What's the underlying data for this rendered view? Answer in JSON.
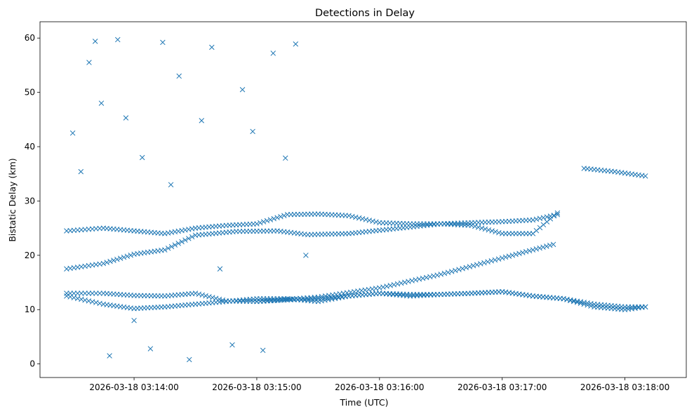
{
  "chart_data": {
    "type": "scatter",
    "title": "Detections in Delay",
    "xlabel": "Time (UTC)",
    "ylabel": "Bistatic Delay (km)",
    "marker": "x",
    "marker_color": "#1f77b4",
    "grid": false,
    "legend": "none",
    "xlim": [
      "2026-03-18 03:13:14",
      "2026-03-18 03:18:30"
    ],
    "ylim": [
      -2.5,
      63
    ],
    "x_ticks": [
      {
        "value": "2026-03-18 03:14:00",
        "label": "2026-03-18 03:14:00"
      },
      {
        "value": "2026-03-18 03:15:00",
        "label": "2026-03-18 03:15:00"
      },
      {
        "value": "2026-03-18 03:16:00",
        "label": "2026-03-18 03:16:00"
      },
      {
        "value": "2026-03-18 03:17:00",
        "label": "2026-03-18 03:17:00"
      },
      {
        "value": "2026-03-18 03:18:00",
        "label": "2026-03-18 03:18:00"
      }
    ],
    "y_ticks": [
      0,
      10,
      20,
      30,
      40,
      50,
      60
    ],
    "tracks": [
      {
        "x": [
          "2026-03-18 03:13:27",
          "2026-03-18 03:13:45",
          "2026-03-18 03:14:00",
          "2026-03-18 03:14:15",
          "2026-03-18 03:14:30",
          "2026-03-18 03:14:45",
          "2026-03-18 03:15:00",
          "2026-03-18 03:15:15",
          "2026-03-18 03:15:30",
          "2026-03-18 03:15:45",
          "2026-03-18 03:16:00",
          "2026-03-18 03:16:15",
          "2026-03-18 03:16:30",
          "2026-03-18 03:16:45",
          "2026-03-18 03:17:00",
          "2026-03-18 03:17:15",
          "2026-03-18 03:17:30",
          "2026-03-18 03:17:45",
          "2026-03-18 03:18:00",
          "2026-03-18 03:18:10"
        ],
        "y": [
          13,
          13,
          12.6,
          12.5,
          13,
          11.6,
          11.5,
          11.8,
          12,
          12.5,
          13,
          12.8,
          12.8,
          13,
          13.3,
          12.5,
          12,
          11,
          10.5,
          10.5
        ]
      },
      {
        "x": [
          "2026-03-18 03:13:27",
          "2026-03-18 03:13:45",
          "2026-03-18 03:14:00",
          "2026-03-18 03:14:15",
          "2026-03-18 03:14:30",
          "2026-03-18 03:14:45",
          "2026-03-18 03:15:00",
          "2026-03-18 03:15:15",
          "2026-03-18 03:15:30",
          "2026-03-18 03:15:45",
          "2026-03-18 03:16:00",
          "2026-03-18 03:16:15",
          "2026-03-18 03:16:30",
          "2026-03-18 03:16:45",
          "2026-03-18 03:17:00",
          "2026-03-18 03:17:15",
          "2026-03-18 03:17:30",
          "2026-03-18 03:17:45",
          "2026-03-18 03:18:00",
          "2026-03-18 03:18:10"
        ],
        "y": [
          12.5,
          11,
          10.2,
          10.5,
          11,
          11.5,
          12,
          12,
          11.5,
          12.5,
          13,
          12.5,
          12.8,
          13,
          13.3,
          12.5,
          12,
          10.5,
          10,
          10.5
        ]
      },
      {
        "x": [
          "2026-03-18 03:13:27",
          "2026-03-18 03:13:45",
          "2026-03-18 03:14:00",
          "2026-03-18 03:14:15",
          "2026-03-18 03:14:30",
          "2026-03-18 03:14:50",
          "2026-03-18 03:15:10",
          "2026-03-18 03:15:25",
          "2026-03-18 03:15:45",
          "2026-03-18 03:16:00",
          "2026-03-18 03:16:15",
          "2026-03-18 03:16:30",
          "2026-03-18 03:16:45",
          "2026-03-18 03:17:00",
          "2026-03-18 03:17:15",
          "2026-03-18 03:17:27"
        ],
        "y": [
          17.5,
          18.5,
          20.2,
          21,
          23.7,
          24.4,
          24.5,
          23.8,
          24,
          24.6,
          25.2,
          25.8,
          26,
          26.2,
          26.5,
          27.5
        ]
      },
      {
        "x": [
          "2026-03-18 03:13:27",
          "2026-03-18 03:13:45",
          "2026-03-18 03:14:00",
          "2026-03-18 03:14:15",
          "2026-03-18 03:14:30",
          "2026-03-18 03:14:45",
          "2026-03-18 03:15:00",
          "2026-03-18 03:15:15",
          "2026-03-18 03:15:30",
          "2026-03-18 03:15:45",
          "2026-03-18 03:16:00",
          "2026-03-18 03:16:15",
          "2026-03-18 03:16:30",
          "2026-03-18 03:16:45",
          "2026-03-18 03:17:00",
          "2026-03-18 03:17:15",
          "2026-03-18 03:17:27"
        ],
        "y": [
          24.5,
          25,
          24.5,
          24,
          25,
          25.5,
          25.8,
          27.5,
          27.6,
          27.3,
          26,
          25.8,
          25.8,
          25.5,
          24,
          24,
          27.8
        ]
      },
      {
        "x": [
          "2026-03-18 03:15:00",
          "2026-03-18 03:15:30",
          "2026-03-18 03:16:00",
          "2026-03-18 03:16:30",
          "2026-03-18 03:17:00",
          "2026-03-18 03:17:15",
          "2026-03-18 03:17:25"
        ],
        "y": [
          11.5,
          12.3,
          14,
          16.5,
          19.5,
          21,
          22
        ]
      },
      {
        "x": [
          "2026-03-18 03:17:40",
          "2026-03-18 03:17:55",
          "2026-03-18 03:18:10"
        ],
        "y": [
          36,
          35.4,
          34.6
        ]
      }
    ],
    "scattered_points": [
      {
        "x": "2026-03-18 03:13:30",
        "y": 42.5
      },
      {
        "x": "2026-03-18 03:13:34",
        "y": 35.4
      },
      {
        "x": "2026-03-18 03:13:38",
        "y": 55.5
      },
      {
        "x": "2026-03-18 03:13:41",
        "y": 59.4
      },
      {
        "x": "2026-03-18 03:13:44",
        "y": 48
      },
      {
        "x": "2026-03-18 03:13:48",
        "y": 1.5
      },
      {
        "x": "2026-03-18 03:13:52",
        "y": 59.7
      },
      {
        "x": "2026-03-18 03:13:56",
        "y": 45.3
      },
      {
        "x": "2026-03-18 03:14:00",
        "y": 8
      },
      {
        "x": "2026-03-18 03:14:04",
        "y": 38
      },
      {
        "x": "2026-03-18 03:14:08",
        "y": 2.8
      },
      {
        "x": "2026-03-18 03:14:14",
        "y": 59.2
      },
      {
        "x": "2026-03-18 03:14:18",
        "y": 33
      },
      {
        "x": "2026-03-18 03:14:22",
        "y": 53
      },
      {
        "x": "2026-03-18 03:14:27",
        "y": 0.8
      },
      {
        "x": "2026-03-18 03:14:33",
        "y": 44.8
      },
      {
        "x": "2026-03-18 03:14:38",
        "y": 58.3
      },
      {
        "x": "2026-03-18 03:14:42",
        "y": 17.5
      },
      {
        "x": "2026-03-18 03:14:48",
        "y": 3.5
      },
      {
        "x": "2026-03-18 03:14:53",
        "y": 50.5
      },
      {
        "x": "2026-03-18 03:14:58",
        "y": 42.8
      },
      {
        "x": "2026-03-18 03:15:03",
        "y": 2.5
      },
      {
        "x": "2026-03-18 03:15:08",
        "y": 57.2
      },
      {
        "x": "2026-03-18 03:15:14",
        "y": 37.9
      },
      {
        "x": "2026-03-18 03:15:19",
        "y": 58.9
      },
      {
        "x": "2026-03-18 03:15:24",
        "y": 20
      }
    ]
  }
}
